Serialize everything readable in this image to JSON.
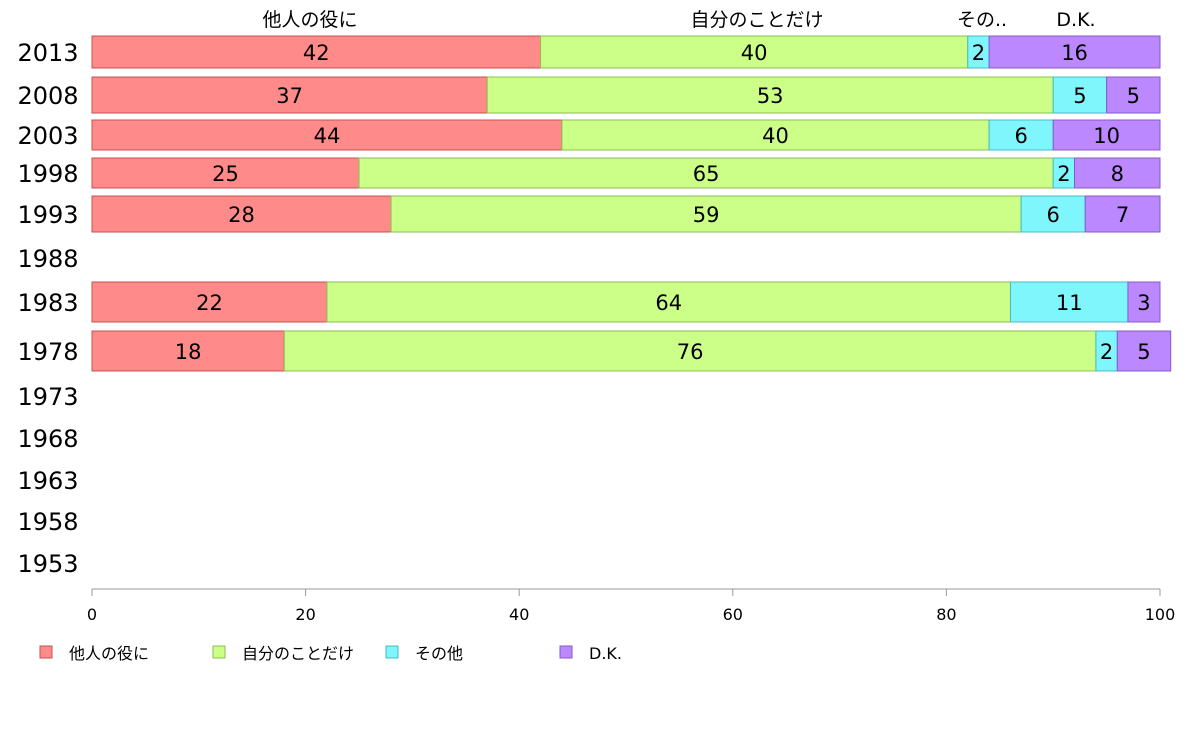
{
  "chart_data": {
    "type": "bar",
    "orientation": "horizontal",
    "stacked": true,
    "categories": [
      "2013",
      "2008",
      "2003",
      "1998",
      "1993",
      "1988",
      "1983",
      "1978",
      "1973",
      "1968",
      "1963",
      "1958",
      "1953"
    ],
    "series": [
      {
        "name": "他人の役に",
        "color": "#ff8a8a",
        "values": [
          42,
          37,
          44,
          25,
          28,
          null,
          22,
          18,
          null,
          null,
          null,
          null,
          null
        ]
      },
      {
        "name": "自分のことだけ",
        "color": "#ccff88",
        "values": [
          40,
          53,
          40,
          65,
          59,
          null,
          64,
          76,
          null,
          null,
          null,
          null,
          null
        ]
      },
      {
        "name": "その他",
        "color": "#7ff6fb",
        "values": [
          2,
          5,
          6,
          2,
          6,
          null,
          11,
          2,
          null,
          null,
          null,
          null,
          null
        ]
      },
      {
        "name": "D.K.",
        "color": "#bb88ff",
        "values": [
          16,
          5,
          10,
          8,
          7,
          null,
          3,
          5,
          null,
          null,
          null,
          null,
          null
        ]
      }
    ],
    "column_headers": [
      "他人の役に",
      "自分のことだけ",
      "その..",
      "D.K."
    ],
    "xlim": [
      0,
      100
    ],
    "xticks": [
      "0",
      "20",
      "40",
      "60",
      "80",
      "100"
    ],
    "legend_position": "bottom",
    "grid": false
  }
}
